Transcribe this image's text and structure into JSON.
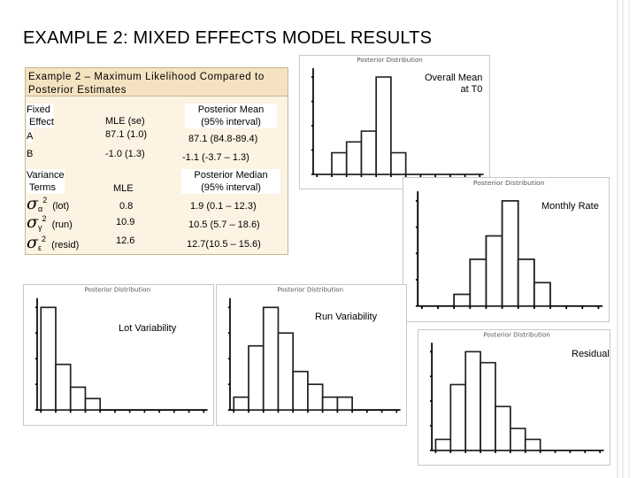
{
  "slide": {
    "title": "EXAMPLE 2:  MIXED EFFECTS MODEL RESULTS"
  },
  "table": {
    "title_line1": "Example 2 – Maximum Likelihood Compared to",
    "title_line2": "Posterior Estimates",
    "fixed": {
      "header_line1": "Fixed",
      "header_line2": "Effect",
      "col_mle": "MLE (se)",
      "col_post_line1": "Posterior Mean",
      "col_post_line2": "(95% interval)",
      "rows": [
        {
          "name": "A",
          "mle": "87.1 (1.0)",
          "post": "87.1 (84.8-89.4)"
        },
        {
          "name": "B",
          "mle": "-1.0 (1.3)",
          "post": "-1.1 (-3.7 – 1.3)"
        }
      ]
    },
    "variance": {
      "header_line1": "Variance",
      "header_line2": "Terms",
      "col_mle": "MLE",
      "col_post_line1": "Posterior Median",
      "col_post_line2": "(95% interval)",
      "rows": [
        {
          "sym": "σ",
          "sub": "α",
          "sup": "2",
          "name": "(lot)",
          "mle": "0.8",
          "post": "1.9 (0.1 – 12.3)"
        },
        {
          "sym": "σ",
          "sub": "γ",
          "sup": "2",
          "name": "(run)",
          "mle": "10.9",
          "post": "10.5 (5.7 – 18.6)"
        },
        {
          "sym": "σ",
          "sub": "ε",
          "sup": "2",
          "name": "(resid)",
          "mle": "12.6",
          "post": "12.7(10.5 – 15.6)"
        }
      ]
    }
  },
  "chart_labels": {
    "overall_mean_line1": "Overall Mean",
    "overall_mean_line2": "at T0",
    "monthly_rate": "Monthly Rate",
    "lot_variability": "Lot Variability",
    "run_variability": "Run Variability",
    "residual": "Residual"
  },
  "chart_data": [
    {
      "id": "overall-mean",
      "type": "bar",
      "values": [
        0,
        2,
        3,
        4,
        9,
        2,
        0,
        0,
        0,
        0,
        0
      ]
    },
    {
      "id": "monthly-rate",
      "type": "bar",
      "values": [
        0,
        0,
        1,
        4,
        6,
        9,
        4,
        2,
        0,
        0,
        0
      ]
    },
    {
      "id": "lot-variability",
      "type": "bar",
      "values": [
        9,
        4,
        2,
        1,
        0,
        0,
        0,
        0,
        0,
        0,
        0
      ]
    },
    {
      "id": "run-variability",
      "type": "bar",
      "values": [
        1,
        5,
        8,
        6,
        3,
        2,
        1,
        1,
        0,
        0,
        0
      ]
    },
    {
      "id": "residual",
      "type": "bar",
      "values": [
        1,
        6,
        9,
        8,
        4,
        2,
        1,
        0,
        0,
        0,
        0
      ]
    }
  ],
  "colors": {
    "table_fill": "#fdf3e3",
    "table_header": "#f4e2c1",
    "table_border": "#c9b58f",
    "frame": "#c8c8c8"
  }
}
